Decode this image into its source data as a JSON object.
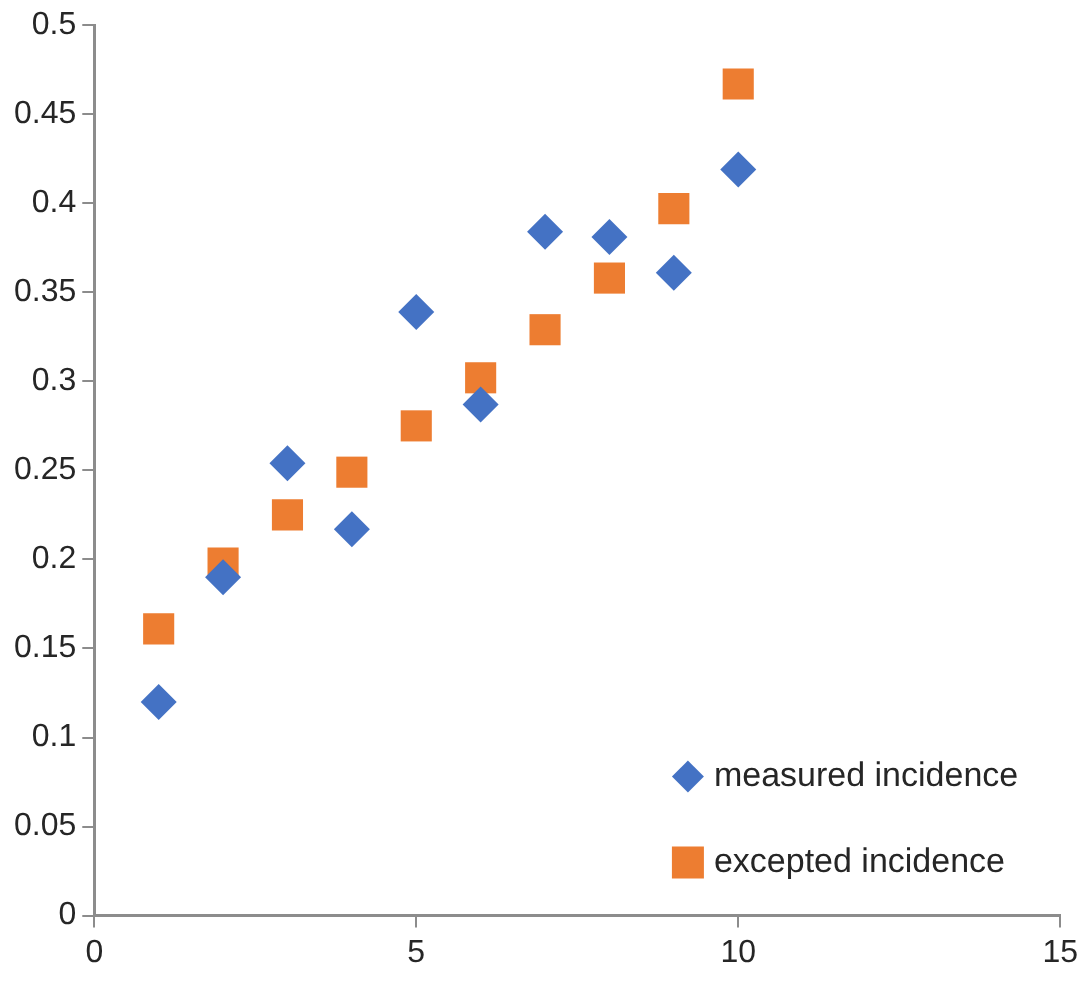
{
  "chart_data": {
    "type": "scatter",
    "x": [
      1,
      2,
      3,
      4,
      5,
      6,
      7,
      8,
      9,
      10
    ],
    "series": [
      {
        "name": "measured incidence",
        "color": "#4472c4",
        "marker": "diamond",
        "values": [
          0.12,
          0.19,
          0.254,
          0.217,
          0.339,
          0.287,
          0.384,
          0.381,
          0.361,
          0.419
        ]
      },
      {
        "name": "excepted incidence",
        "color": "#ed7d31",
        "marker": "square",
        "values": [
          0.161,
          0.198,
          0.225,
          0.249,
          0.275,
          0.302,
          0.329,
          0.358,
          0.397,
          0.467
        ]
      }
    ],
    "xlim": [
      0,
      15
    ],
    "xticks": [
      0,
      5,
      10,
      15
    ],
    "ylim": [
      0,
      0.5
    ],
    "yticks": [
      0,
      0.05,
      0.1,
      0.15,
      0.2,
      0.25,
      0.3,
      0.35,
      0.4,
      0.45,
      0.5
    ],
    "grid": false,
    "legend": "bottom right"
  }
}
